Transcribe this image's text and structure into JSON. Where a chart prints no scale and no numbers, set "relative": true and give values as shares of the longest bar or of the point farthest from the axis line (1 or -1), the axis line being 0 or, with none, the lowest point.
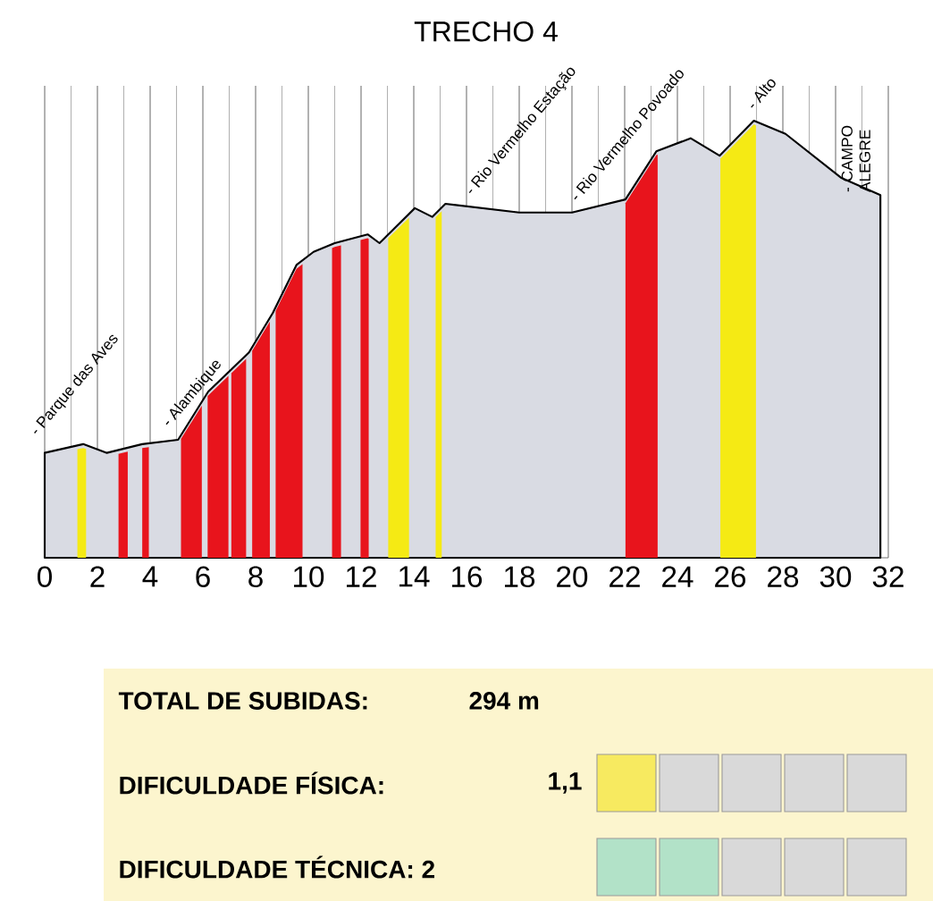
{
  "chart_data": {
    "type": "area",
    "title": "TRECHO 4",
    "relative": true,
    "color": "#d9dbe3",
    "x": [
      0,
      1.46,
      2.36,
      3.7,
      5.06,
      6.2,
      7.75,
      8.65,
      9.55,
      10.2,
      11,
      12.25,
      12.7,
      14.04,
      14.7,
      15.2,
      18,
      20,
      22.03,
      23.2,
      24.5,
      25.6,
      26.9,
      28.1,
      30.2,
      31.7
    ],
    "values": [
      0.24,
      0.26,
      0.24,
      0.26,
      0.27,
      0.38,
      0.47,
      0.56,
      0.67,
      0.7,
      0.72,
      0.74,
      0.72,
      0.8,
      0.78,
      0.81,
      0.79,
      0.79,
      0.82,
      0.93,
      0.96,
      0.92,
      1,
      0.97,
      0.87,
      0.83
    ],
    "xlim": [
      0,
      32
    ],
    "xticks": [
      0,
      2,
      4,
      6,
      8,
      10,
      12,
      14,
      16,
      18,
      20,
      22,
      24,
      26,
      28,
      30,
      32
    ],
    "grid": "x",
    "bands": [
      {
        "axis": "x",
        "from": 1.24,
        "to": 1.57,
        "color": "#f5ea14"
      },
      {
        "axis": "x",
        "from": 2.8,
        "to": 3.15,
        "color": "#e8141c"
      },
      {
        "axis": "x",
        "from": 3.7,
        "to": 3.95,
        "color": "#e8141c"
      },
      {
        "axis": "x",
        "from": 5.17,
        "to": 5.96,
        "color": "#e8141c"
      },
      {
        "axis": "x",
        "from": 6.18,
        "to": 6.97,
        "color": "#e8141c"
      },
      {
        "axis": "x",
        "from": 7.08,
        "to": 7.64,
        "color": "#e8141c"
      },
      {
        "axis": "x",
        "from": 7.87,
        "to": 8.54,
        "color": "#e8141c"
      },
      {
        "axis": "x",
        "from": 8.76,
        "to": 9.78,
        "color": "#e8141c"
      },
      {
        "axis": "x",
        "from": 10.9,
        "to": 11.24,
        "color": "#e8141c"
      },
      {
        "axis": "x",
        "from": 11.98,
        "to": 12.29,
        "color": "#e8141c"
      },
      {
        "axis": "x",
        "from": 13.03,
        "to": 13.82,
        "color": "#f5ea14"
      },
      {
        "axis": "x",
        "from": 14.83,
        "to": 15.06,
        "color": "#f5ea14"
      },
      {
        "axis": "x",
        "from": 22.03,
        "to": 23.25,
        "color": "#e8141c"
      },
      {
        "axis": "x",
        "from": 25.63,
        "to": 26.98,
        "color": "#f5ea14"
      }
    ],
    "annotations": [
      {
        "text": "- Parque das Aves",
        "x": 0.1,
        "y": 0.25
      },
      {
        "text": "- Alambique",
        "x": 5.1,
        "y": 0.27
      },
      {
        "text": "- Rio Vermelho Estação",
        "x": 16.6,
        "y": 0.8
      },
      {
        "text": "- Rio Vermelho Povoado",
        "x": 20.5,
        "y": 0.79
      },
      {
        "text": "- Alto",
        "x": 27.2,
        "y": 1
      },
      {
        "text": "- CAMPO ALEGRE",
        "x": 31.7,
        "y": 0.83
      },
      "TOTAL DE SUBIDAS:",
      "294 m",
      "DIFICULDADE FÍSICA:",
      "1,1",
      "DIFICULDADE TÉCNICA: 2"
    ]
  }
}
